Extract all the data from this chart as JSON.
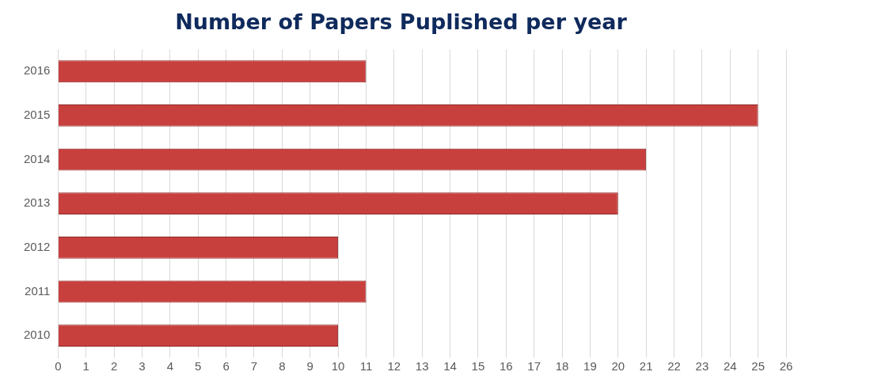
{
  "chart_data": {
    "type": "bar",
    "orientation": "horizontal",
    "title": "Number of Papers Puplished per year",
    "categories": [
      "2016",
      "2015",
      "2014",
      "2013",
      "2012",
      "2011",
      "2010"
    ],
    "values": [
      11,
      25,
      21,
      20,
      10,
      11,
      10
    ],
    "color": "#c8403e",
    "xlim": [
      0,
      26
    ],
    "xticks": [
      0,
      1,
      2,
      3,
      4,
      5,
      6,
      7,
      8,
      9,
      10,
      11,
      12,
      13,
      14,
      15,
      16,
      17,
      18,
      19,
      20,
      21,
      22,
      23,
      24,
      25,
      26
    ],
    "grid": "x"
  }
}
